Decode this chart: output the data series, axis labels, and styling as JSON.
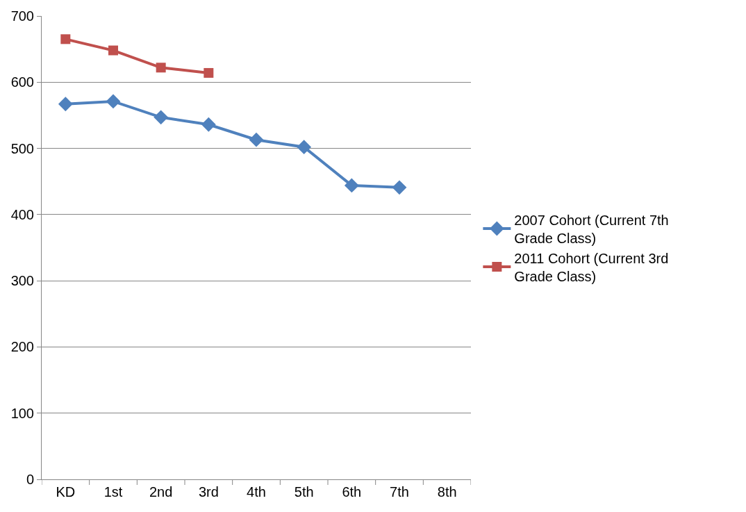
{
  "chart_data": {
    "type": "line",
    "categories": [
      "KD",
      "1st",
      "2nd",
      "3rd",
      "4th",
      "5th",
      "6th",
      "7th",
      "8th"
    ],
    "series": [
      {
        "name": "2007 Cohort (Current 7th Grade Class)",
        "color": "#4f81bd",
        "marker": "diamond",
        "values": [
          567,
          571,
          547,
          536,
          513,
          502,
          444,
          441,
          null
        ]
      },
      {
        "name": "2011 Cohort (Current 3rd Grade Class)",
        "color": "#c0504d",
        "marker": "square",
        "values": [
          665,
          648,
          622,
          614,
          null,
          null,
          null,
          null,
          null
        ]
      }
    ],
    "ylim": [
      0,
      700
    ],
    "yticks": [
      0,
      100,
      200,
      300,
      400,
      500,
      600,
      700
    ],
    "grid": "y",
    "legend": "right"
  }
}
